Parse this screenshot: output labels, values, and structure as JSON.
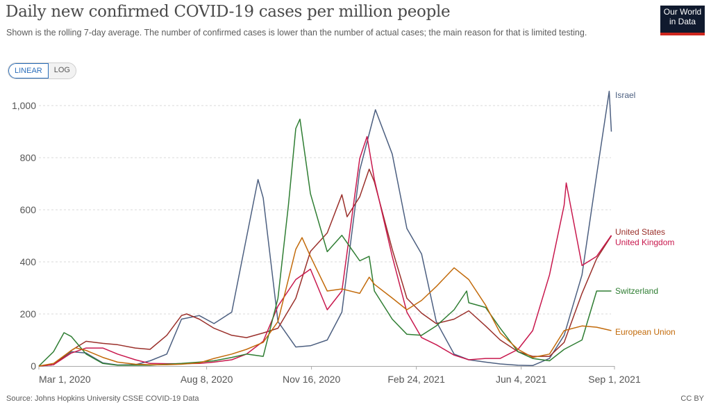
{
  "header": {
    "title": "Daily new confirmed COVID-19 cases per million people",
    "subtitle": "Shown is the rolling 7-day average. The number of confirmed cases is lower than the number of actual cases; the main reason for that is limited testing.",
    "logo_text": "Our World in Data",
    "scale_buttons": [
      {
        "label": "LINEAR",
        "active": true
      },
      {
        "label": "LOG",
        "active": false
      }
    ]
  },
  "footer": {
    "source": "Source: Johns Hopkins University CSSE COVID-19 Data",
    "license": "CC BY"
  },
  "chart_data": {
    "type": "line",
    "title": "Daily new confirmed COVID-19 cases per million people",
    "xlabel": "",
    "ylabel": "",
    "xlim": [
      "2020-03-01",
      "2021-09-01"
    ],
    "ylim": [
      0,
      1060
    ],
    "y_ticks": [
      0,
      200,
      400,
      600,
      800,
      1000
    ],
    "y_tick_labels": [
      "0",
      "200",
      "400",
      "600",
      "800",
      "1,000"
    ],
    "x_ticks": [
      "2020-03-01",
      "2020-08-08",
      "2020-11-16",
      "2021-02-24",
      "2021-06-04",
      "2021-09-01"
    ],
    "x_tick_labels": [
      "Mar 1, 2020",
      "Aug 8, 2020",
      "Nov 16, 2020",
      "Feb 24, 2021",
      "Jun 4, 2021",
      "Sep 1, 2021"
    ],
    "grid": "horizontal dashed",
    "legend": "right (line-end labels)",
    "series": [
      {
        "name": "Israel",
        "color": "#4c5f80",
        "points": [
          [
            "2020-03-01",
            0
          ],
          [
            "2020-03-15",
            5
          ],
          [
            "2020-04-01",
            55
          ],
          [
            "2020-04-15",
            50
          ],
          [
            "2020-05-01",
            12
          ],
          [
            "2020-05-15",
            4
          ],
          [
            "2020-06-01",
            5
          ],
          [
            "2020-06-15",
            20
          ],
          [
            "2020-07-01",
            46
          ],
          [
            "2020-07-15",
            180
          ],
          [
            "2020-08-01",
            194
          ],
          [
            "2020-08-15",
            163
          ],
          [
            "2020-09-01",
            207
          ],
          [
            "2020-09-15",
            493
          ],
          [
            "2020-09-26",
            716
          ],
          [
            "2020-10-01",
            645
          ],
          [
            "2020-10-15",
            171
          ],
          [
            "2020-11-01",
            73
          ],
          [
            "2020-11-15",
            78
          ],
          [
            "2020-12-01",
            100
          ],
          [
            "2020-12-15",
            207
          ],
          [
            "2021-01-01",
            752
          ],
          [
            "2021-01-16",
            984
          ],
          [
            "2021-02-01",
            814
          ],
          [
            "2021-02-15",
            528
          ],
          [
            "2021-03-01",
            430
          ],
          [
            "2021-03-15",
            171
          ],
          [
            "2021-04-01",
            46
          ],
          [
            "2021-04-15",
            24
          ],
          [
            "2021-05-01",
            15
          ],
          [
            "2021-05-15",
            8
          ],
          [
            "2021-06-01",
            3
          ],
          [
            "2021-06-15",
            2
          ],
          [
            "2021-07-01",
            29
          ],
          [
            "2021-07-15",
            118
          ],
          [
            "2021-08-01",
            350
          ],
          [
            "2021-08-15",
            734
          ],
          [
            "2021-08-27",
            1055
          ],
          [
            "2021-08-29",
            900
          ]
        ]
      },
      {
        "name": "United States",
        "color": "#9a2f2a",
        "points": [
          [
            "2020-03-01",
            0
          ],
          [
            "2020-03-15",
            5
          ],
          [
            "2020-04-01",
            60
          ],
          [
            "2020-04-15",
            95
          ],
          [
            "2020-05-01",
            87
          ],
          [
            "2020-05-15",
            82
          ],
          [
            "2020-06-01",
            69
          ],
          [
            "2020-06-15",
            64
          ],
          [
            "2020-07-01",
            118
          ],
          [
            "2020-07-15",
            194
          ],
          [
            "2020-07-20",
            200
          ],
          [
            "2020-08-01",
            180
          ],
          [
            "2020-08-15",
            145
          ],
          [
            "2020-09-01",
            118
          ],
          [
            "2020-09-15",
            109
          ],
          [
            "2020-10-01",
            127
          ],
          [
            "2020-10-15",
            145
          ],
          [
            "2020-11-01",
            260
          ],
          [
            "2020-11-15",
            440
          ],
          [
            "2020-12-01",
            511
          ],
          [
            "2020-12-15",
            658
          ],
          [
            "2020-12-20",
            573
          ],
          [
            "2021-01-01",
            650
          ],
          [
            "2021-01-10",
            756
          ],
          [
            "2021-01-15",
            707
          ],
          [
            "2021-02-01",
            448
          ],
          [
            "2021-02-15",
            260
          ],
          [
            "2021-03-01",
            203
          ],
          [
            "2021-03-15",
            163
          ],
          [
            "2021-04-01",
            180
          ],
          [
            "2021-04-15",
            212
          ],
          [
            "2021-05-01",
            154
          ],
          [
            "2021-05-15",
            100
          ],
          [
            "2021-06-01",
            55
          ],
          [
            "2021-06-15",
            37
          ],
          [
            "2021-07-01",
            37
          ],
          [
            "2021-07-15",
            91
          ],
          [
            "2021-08-01",
            279
          ],
          [
            "2021-08-15",
            412
          ],
          [
            "2021-08-29",
            500
          ]
        ]
      },
      {
        "name": "United Kingdom",
        "color": "#c8184d",
        "points": [
          [
            "2020-03-01",
            0
          ],
          [
            "2020-03-15",
            5
          ],
          [
            "2020-04-01",
            50
          ],
          [
            "2020-04-15",
            69
          ],
          [
            "2020-05-01",
            69
          ],
          [
            "2020-05-15",
            46
          ],
          [
            "2020-06-01",
            24
          ],
          [
            "2020-06-15",
            10
          ],
          [
            "2020-07-01",
            9
          ],
          [
            "2020-07-15",
            9
          ],
          [
            "2020-08-01",
            10
          ],
          [
            "2020-08-15",
            15
          ],
          [
            "2020-09-01",
            24
          ],
          [
            "2020-09-15",
            46
          ],
          [
            "2020-10-01",
            95
          ],
          [
            "2020-10-15",
            230
          ],
          [
            "2020-11-01",
            332
          ],
          [
            "2020-11-15",
            372
          ],
          [
            "2020-12-01",
            216
          ],
          [
            "2020-12-15",
            288
          ],
          [
            "2021-01-01",
            797
          ],
          [
            "2021-01-08",
            881
          ],
          [
            "2021-01-15",
            716
          ],
          [
            "2021-02-01",
            421
          ],
          [
            "2021-02-15",
            207
          ],
          [
            "2021-03-01",
            109
          ],
          [
            "2021-03-15",
            82
          ],
          [
            "2021-04-01",
            42
          ],
          [
            "2021-04-15",
            24
          ],
          [
            "2021-05-01",
            29
          ],
          [
            "2021-05-15",
            29
          ],
          [
            "2021-06-01",
            64
          ],
          [
            "2021-06-15",
            136
          ],
          [
            "2021-07-01",
            350
          ],
          [
            "2021-07-15",
            618
          ],
          [
            "2021-07-17",
            703
          ],
          [
            "2021-08-01",
            386
          ],
          [
            "2021-08-15",
            421
          ],
          [
            "2021-08-29",
            502
          ]
        ]
      },
      {
        "name": "Switzerland",
        "color": "#2e7d32",
        "points": [
          [
            "2020-03-01",
            0
          ],
          [
            "2020-03-15",
            55
          ],
          [
            "2020-03-25",
            128
          ],
          [
            "2020-04-01",
            113
          ],
          [
            "2020-04-15",
            46
          ],
          [
            "2020-05-01",
            10
          ],
          [
            "2020-05-15",
            3
          ],
          [
            "2020-06-01",
            3
          ],
          [
            "2020-06-15",
            3
          ],
          [
            "2020-07-01",
            7
          ],
          [
            "2020-07-15",
            10
          ],
          [
            "2020-08-01",
            15
          ],
          [
            "2020-08-15",
            20
          ],
          [
            "2020-09-01",
            33
          ],
          [
            "2020-09-15",
            46
          ],
          [
            "2020-10-01",
            37
          ],
          [
            "2020-10-15",
            260
          ],
          [
            "2020-10-25",
            618
          ],
          [
            "2020-11-01",
            912
          ],
          [
            "2020-11-05",
            948
          ],
          [
            "2020-11-15",
            662
          ],
          [
            "2020-12-01",
            439
          ],
          [
            "2020-12-15",
            502
          ],
          [
            "2021-01-01",
            404
          ],
          [
            "2021-01-10",
            421
          ],
          [
            "2021-01-15",
            288
          ],
          [
            "2021-02-01",
            180
          ],
          [
            "2021-02-15",
            122
          ],
          [
            "2021-03-01",
            118
          ],
          [
            "2021-03-15",
            154
          ],
          [
            "2021-04-01",
            216
          ],
          [
            "2021-04-13",
            288
          ],
          [
            "2021-04-15",
            243
          ],
          [
            "2021-05-01",
            225
          ],
          [
            "2021-05-15",
            145
          ],
          [
            "2021-06-01",
            55
          ],
          [
            "2021-06-15",
            29
          ],
          [
            "2021-07-01",
            20
          ],
          [
            "2021-07-15",
            64
          ],
          [
            "2021-08-01",
            100
          ],
          [
            "2021-08-15",
            288
          ],
          [
            "2021-08-29",
            288
          ]
        ]
      },
      {
        "name": "European Union",
        "color": "#c26a0a",
        "points": [
          [
            "2020-03-01",
            0
          ],
          [
            "2020-03-15",
            10
          ],
          [
            "2020-04-01",
            60
          ],
          [
            "2020-04-05",
            70
          ],
          [
            "2020-04-15",
            60
          ],
          [
            "2020-05-01",
            33
          ],
          [
            "2020-05-15",
            15
          ],
          [
            "2020-06-01",
            7
          ],
          [
            "2020-06-15",
            5
          ],
          [
            "2020-07-01",
            5
          ],
          [
            "2020-07-15",
            7
          ],
          [
            "2020-08-01",
            12
          ],
          [
            "2020-08-15",
            29
          ],
          [
            "2020-09-01",
            46
          ],
          [
            "2020-09-15",
            64
          ],
          [
            "2020-10-01",
            91
          ],
          [
            "2020-10-15",
            171
          ],
          [
            "2020-11-01",
            448
          ],
          [
            "2020-11-07",
            493
          ],
          [
            "2020-11-15",
            421
          ],
          [
            "2020-12-01",
            288
          ],
          [
            "2020-12-15",
            296
          ],
          [
            "2021-01-01",
            279
          ],
          [
            "2021-01-10",
            341
          ],
          [
            "2021-01-15",
            314
          ],
          [
            "2021-02-01",
            261
          ],
          [
            "2021-02-15",
            216
          ],
          [
            "2021-03-01",
            252
          ],
          [
            "2021-03-15",
            305
          ],
          [
            "2021-04-01",
            377
          ],
          [
            "2021-04-15",
            332
          ],
          [
            "2021-05-01",
            234
          ],
          [
            "2021-05-15",
            127
          ],
          [
            "2021-06-01",
            64
          ],
          [
            "2021-06-15",
            33
          ],
          [
            "2021-07-01",
            46
          ],
          [
            "2021-07-15",
            136
          ],
          [
            "2021-08-01",
            154
          ],
          [
            "2021-08-15",
            149
          ],
          [
            "2021-08-29",
            136
          ]
        ]
      }
    ]
  }
}
